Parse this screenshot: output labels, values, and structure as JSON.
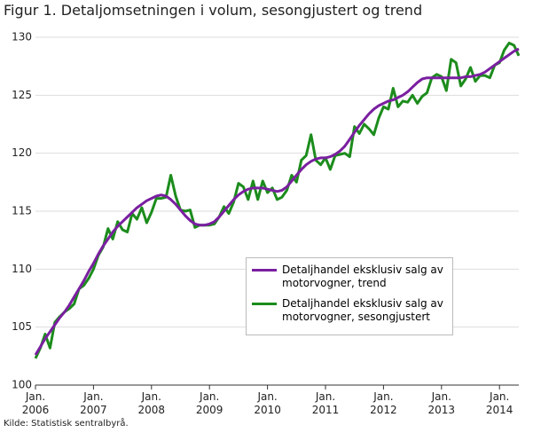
{
  "chart_data": {
    "type": "line",
    "title": "Figur 1. Detaljomsetningen i volum, sesongjustert og trend",
    "source": "Kilde: Statistisk sentralbyrå.",
    "categories": [
      "Jan. 2006",
      null,
      null,
      null,
      null,
      null,
      null,
      null,
      null,
      null,
      null,
      null,
      "Jan. 2007",
      null,
      null,
      null,
      null,
      null,
      null,
      null,
      null,
      null,
      null,
      null,
      "Jan. 2008",
      null,
      null,
      null,
      null,
      null,
      null,
      null,
      null,
      null,
      null,
      null,
      "Jan. 2009",
      null,
      null,
      null,
      null,
      null,
      null,
      null,
      null,
      null,
      null,
      null,
      "Jan. 2010",
      null,
      null,
      null,
      null,
      null,
      null,
      null,
      null,
      null,
      null,
      null,
      "Jan. 2011",
      null,
      null,
      null,
      null,
      null,
      null,
      null,
      null,
      null,
      null,
      null,
      "Jan. 2012",
      null,
      null,
      null,
      null,
      null,
      null,
      null,
      null,
      null,
      null,
      null,
      "Jan. 2013",
      null,
      null,
      null,
      null,
      null,
      null,
      null,
      null,
      null,
      null,
      null,
      "Jan. 2014",
      null,
      null,
      null,
      null
    ],
    "series": [
      {
        "name": "Detaljhandel eksklusiv salg av motorvogner, trend",
        "color": "#7a1fa0",
        "values": [
          102.6,
          103.3,
          104.0,
          104.6,
          105.2,
          105.8,
          106.3,
          106.9,
          107.6,
          108.3,
          109.0,
          109.8,
          110.5,
          111.3,
          112.0,
          112.6,
          113.2,
          113.7,
          114.1,
          114.5,
          114.9,
          115.3,
          115.6,
          115.9,
          116.1,
          116.3,
          116.4,
          116.3,
          116.0,
          115.6,
          115.1,
          114.6,
          114.2,
          113.9,
          113.8,
          113.8,
          113.9,
          114.1,
          114.5,
          115.0,
          115.5,
          116.0,
          116.4,
          116.7,
          116.9,
          117.0,
          117.0,
          117.0,
          116.9,
          116.8,
          116.7,
          116.8,
          117.1,
          117.6,
          118.1,
          118.6,
          119.0,
          119.3,
          119.5,
          119.6,
          119.6,
          119.7,
          119.9,
          120.2,
          120.6,
          121.2,
          121.8,
          122.4,
          122.9,
          123.4,
          123.8,
          124.1,
          124.3,
          124.5,
          124.6,
          124.8,
          125.0,
          125.3,
          125.7,
          126.1,
          126.4,
          126.5,
          126.5,
          126.5,
          126.5,
          126.5,
          126.5,
          126.5,
          126.5,
          126.6,
          126.6,
          126.7,
          126.8,
          127.0,
          127.3,
          127.6,
          127.9,
          128.2,
          128.5,
          128.8,
          129.0
        ]
      },
      {
        "name": "Detaljhandel eksklusiv salg av motorvogner, sesongjustert",
        "color": "#1c8c1c",
        "values": [
          102.3,
          103.2,
          104.4,
          103.2,
          105.4,
          105.9,
          106.3,
          106.6,
          107.0,
          108.3,
          108.6,
          109.2,
          110.0,
          111.2,
          111.9,
          113.5,
          112.6,
          114.1,
          113.4,
          113.2,
          114.8,
          114.3,
          115.3,
          114.0,
          114.9,
          116.1,
          116.1,
          116.2,
          118.1,
          116.3,
          115.1,
          115.0,
          115.1,
          113.6,
          113.8,
          113.8,
          113.8,
          113.9,
          114.5,
          115.4,
          114.8,
          115.8,
          117.4,
          117.1,
          116.0,
          117.6,
          116.0,
          117.6,
          116.6,
          117.0,
          116.0,
          116.2,
          116.8,
          118.1,
          117.5,
          119.4,
          119.8,
          121.6,
          119.4,
          119.0,
          119.6,
          118.6,
          119.8,
          119.9,
          120.0,
          119.7,
          122.3,
          121.7,
          122.5,
          122.1,
          121.6,
          123.0,
          124.0,
          123.8,
          125.6,
          124.0,
          124.5,
          124.4,
          125.0,
          124.3,
          124.9,
          125.2,
          126.5,
          126.8,
          126.6,
          125.4,
          128.1,
          127.8,
          125.8,
          126.4,
          127.4,
          126.2,
          126.7,
          126.7,
          126.5,
          127.6,
          127.8,
          128.9,
          129.5,
          129.3,
          128.4
        ]
      }
    ],
    "ylim": [
      100,
      130
    ],
    "yticks": [
      100,
      105,
      110,
      115,
      120,
      125,
      130
    ],
    "grid": true
  }
}
